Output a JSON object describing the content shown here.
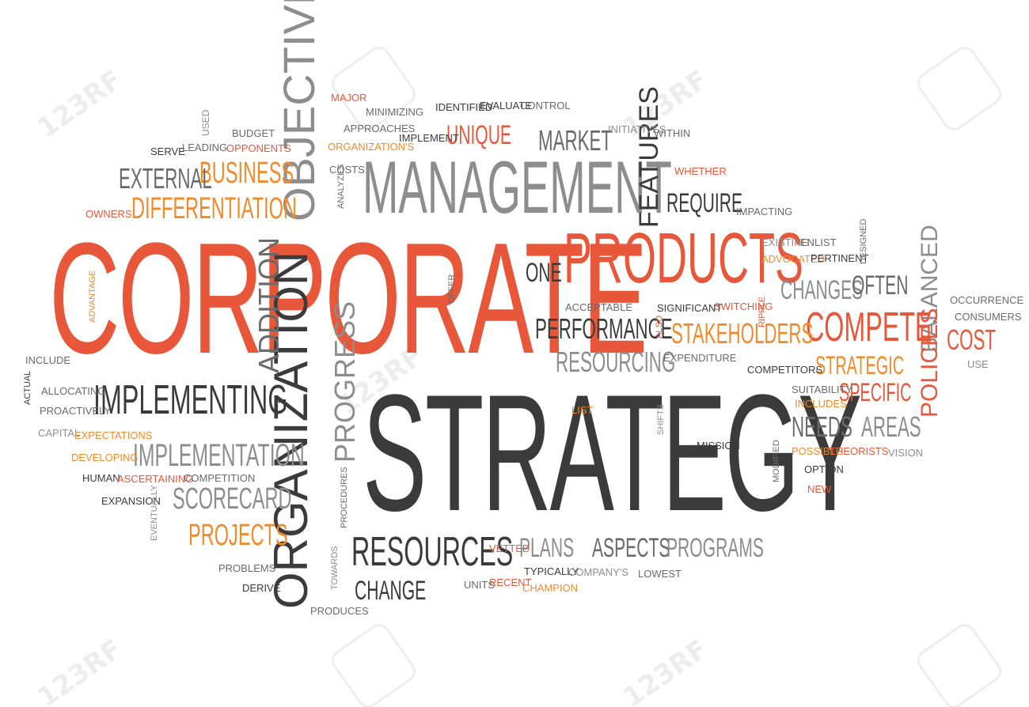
{
  "watermark": {
    "text": "123RF"
  },
  "colors": {
    "red": "#e8573a",
    "orange": "#f08a2a",
    "dark": "#3b3b3b",
    "mid": "#6a6a6a",
    "light": "#8d8d8d"
  },
  "words": {
    "corporate": "CORPORATE",
    "strategy": "STRATEGY",
    "management": "MANAGEMENT",
    "products": "PRODUCTS",
    "objectives": "OBJECTIVES",
    "organization": "ORGANIZATION",
    "implementing": "IMPLEMENTING",
    "implementation": "IMPLEMENTATION",
    "business": "BUSINESS",
    "differentiation": "DIFFERENTIATION",
    "external": "EXTERNAL",
    "resources": "RESOURCES",
    "change": "CHANGE",
    "compete": "COMPETE",
    "stakeholders": "STAKEHOLDERS",
    "performance": "PERFORMANCE",
    "resourcing": "RESOURCING",
    "scorecard": "SCORECARD",
    "projects": "PROJECTS",
    "progress": "PROGRESS",
    "addition": "ADDITION",
    "features": "FEATURES",
    "require": "REQUIRE",
    "market": "MARKET",
    "unique": "UNIQUE",
    "one": "ONE",
    "changes": "CHANGES",
    "often": "OFTEN",
    "balanced": "BALANCED",
    "cost": "COST",
    "strategic": "STRATEGIC",
    "specific": "SPECIFIC",
    "policies": "POLICIES",
    "needs": "NEEDS",
    "areas": "AREAS",
    "plans": "PLANS",
    "aspects": "ASPECTS",
    "programs": "PROGRAMS",
    "major": "MAJOR",
    "minimizing": "MINIMIZING",
    "identified": "IDENTIFIED",
    "evaluate": "EVALUATE",
    "control": "CONTROL",
    "approaches": "APPROACHES",
    "implement": "IMPLEMENT",
    "organizations": "ORGANIZATION'S",
    "initiatives": "INITIATIVES",
    "within": "WITHIN",
    "used": "USED",
    "budget": "BUDGET",
    "serve": "SERVE",
    "leading": "LEADING",
    "opponents": "OPPONENTS",
    "costs": "COSTS",
    "analyzes": "ANALYZES",
    "whether": "WHETHER",
    "impacting": "IMPACTING",
    "owners": "OWNERS",
    "existing": "EXISTING",
    "enlist": "ENLIST",
    "designed": "DESIGNED",
    "advocated": "ADVOCATED",
    "pertinent": "PERTINENT",
    "advantage": "ADVANTAGE",
    "offer": "OFFER",
    "acceptable": "ACCEPTABLE",
    "significant": "SIGNIFICANT",
    "switching": "SWITCHING",
    "ripple": "RIPPLE",
    "occurrence": "OCCURRENCE",
    "consumers": "CONSUMERS",
    "also": "ALSO",
    "expenditure": "EXPENDITURE",
    "use": "USE",
    "include": "INCLUDE",
    "competitors": "COMPETITORS",
    "actual": "ACTUAL",
    "allocating": "ALLOCATING",
    "suitability": "SUITABILITY",
    "proactively": "PROACTIVELY",
    "includes": "INCLUDES",
    "list": "LIST",
    "shifts": "SHIFTS",
    "capital": "CAPITAL",
    "expectations": "EXPECTATIONS",
    "mission": "MISSION",
    "modified": "MODIFIED",
    "possible": "POSSIBLE",
    "theorists": "THEORISTS",
    "vision": "VISION",
    "developing": "DEVELOPING",
    "option": "OPTION",
    "human": "HUMAN",
    "ascertaining": "ASCERTAINING",
    "competition": "COMPETITION",
    "new": "NEW",
    "procedures": "PROCEDURES",
    "expansion": "EXPANSION",
    "eventually": "EVENTUALLY",
    "vetted": "VETTED",
    "problems": "PROBLEMS",
    "typically": "TYPICALLY",
    "companys": "COMPANY'S",
    "lowest": "LOWEST",
    "towards": "TOWARDS",
    "derive": "DERIVE",
    "units": "UNITS",
    "recent": "RECENT",
    "champion": "CHAMPION",
    "produces": "PRODUCES"
  }
}
